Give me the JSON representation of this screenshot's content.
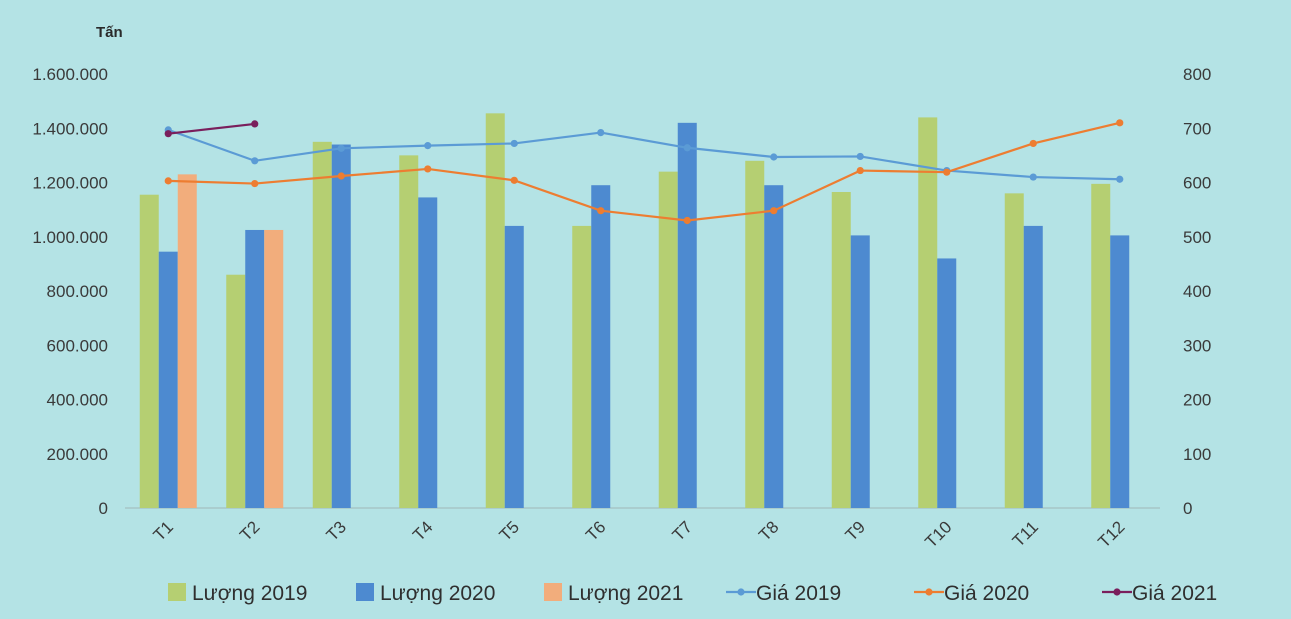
{
  "chart_data": {
    "type": "bar+line",
    "left_axis_unit": "Tấn",
    "categories": [
      "T1",
      "T2",
      "T3",
      "T4",
      "T5",
      "T6",
      "T7",
      "T8",
      "T9",
      "T10",
      "T11",
      "T12"
    ],
    "left_axis": {
      "ylim": [
        0,
        1600000
      ],
      "ticks": [
        "0",
        "200.000",
        "400.000",
        "600.000",
        "800.000",
        "1.000.000",
        "1.200.000",
        "1.400.000",
        "1.600.000"
      ]
    },
    "right_axis": {
      "ylim": [
        0,
        800
      ],
      "ticks": [
        "0",
        "100",
        "200",
        "300",
        "400",
        "500",
        "600",
        "700",
        "800"
      ]
    },
    "bar_series": [
      {
        "name": "Lượng 2019",
        "color": "#b5cf72",
        "values": [
          1155000,
          860000,
          1350000,
          1300000,
          1455000,
          1040000,
          1240000,
          1280000,
          1165000,
          1440000,
          1160000,
          1195000
        ]
      },
      {
        "name": "Lượng 2020",
        "color": "#4d8ad0",
        "values": [
          945000,
          1025000,
          1340000,
          1145000,
          1040000,
          1190000,
          1420000,
          1190000,
          1005000,
          920000,
          1040000,
          1005000
        ]
      },
      {
        "name": "Lượng 2021",
        "color": "#f2ad7c",
        "values": [
          1230000,
          1025000,
          null,
          null,
          null,
          null,
          null,
          null,
          null,
          null,
          null,
          null
        ]
      }
    ],
    "line_series": [
      {
        "name": "Giá 2019",
        "color": "#5b9bd5",
        "values": [
          697,
          640,
          663,
          668,
          672,
          692,
          664,
          647,
          648,
          622,
          610,
          606
        ]
      },
      {
        "name": "Giá 2020",
        "color": "#ed7d31",
        "values": [
          603,
          598,
          612,
          625,
          604,
          548,
          530,
          548,
          622,
          619,
          672,
          710
        ]
      },
      {
        "name": "Giá 2021",
        "color": "#7a1f5c",
        "values": [
          690,
          708,
          null,
          null,
          null,
          null,
          null,
          null,
          null,
          null,
          null,
          null
        ]
      }
    ],
    "grid": false,
    "legend_position": "bottom"
  }
}
